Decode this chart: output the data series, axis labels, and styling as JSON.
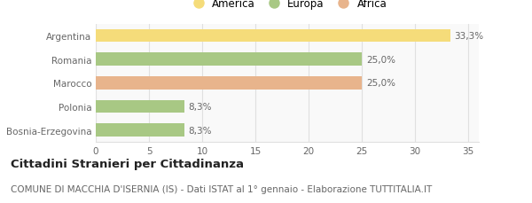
{
  "categories": [
    "Bosnia-Erzegovina",
    "Polonia",
    "Marocco",
    "Romania",
    "Argentina"
  ],
  "values": [
    8.3,
    8.3,
    25.0,
    25.0,
    33.3
  ],
  "colors": [
    "#a8c884",
    "#a8c884",
    "#e8b48c",
    "#a8c884",
    "#f5dc7a"
  ],
  "labels": [
    "8,3%",
    "8,3%",
    "25,0%",
    "25,0%",
    "33,3%"
  ],
  "bar_height": 0.55,
  "xlim": [
    0,
    36
  ],
  "xticks": [
    0,
    5,
    10,
    15,
    20,
    25,
    30,
    35
  ],
  "legend_entries": [
    {
      "label": "America",
      "color": "#f5dc7a"
    },
    {
      "label": "Europa",
      "color": "#a8c884"
    },
    {
      "label": "Africa",
      "color": "#e8b48c"
    }
  ],
  "title": "Cittadini Stranieri per Cittadinanza",
  "subtitle": "COMUNE DI MACCHIA D'ISERNIA (IS) - Dati ISTAT al 1° gennaio - Elaborazione TUTTITALIA.IT",
  "background_color": "#ffffff",
  "plot_bg_color": "#f9f9f9",
  "grid_color": "#e0e0e0",
  "title_fontsize": 9.5,
  "subtitle_fontsize": 7.5,
  "tick_fontsize": 7.5,
  "label_fontsize": 7.5,
  "legend_fontsize": 8.5,
  "text_color": "#666666",
  "title_color": "#222222"
}
